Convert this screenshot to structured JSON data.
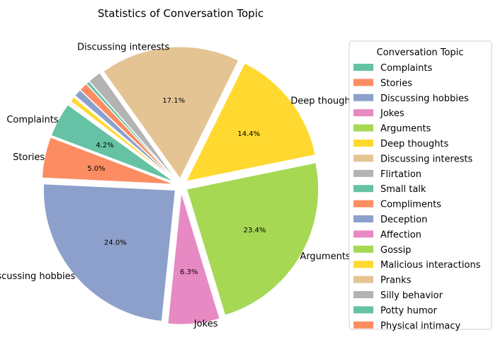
{
  "chart_data": {
    "type": "pie",
    "title": "Statistics of Conversation Topic",
    "legend_title": "Conversation Topic",
    "legend_position": "right",
    "start_angle_deg": 144,
    "direction": "counterclockwise",
    "slices": [
      {
        "label": "Complaints",
        "value": 4.2,
        "pct_label": "4.2%",
        "color": "#66c2a5",
        "show_label": true
      },
      {
        "label": "Stories",
        "value": 5.0,
        "pct_label": "5.0%",
        "color": "#fc8d62",
        "show_label": true
      },
      {
        "label": "Discussing hobbies",
        "value": 24.0,
        "pct_label": "24.0%",
        "color": "#8da0cb",
        "show_label": true
      },
      {
        "label": "Jokes",
        "value": 6.3,
        "pct_label": "6.3%",
        "color": "#e78ac3",
        "show_label": true
      },
      {
        "label": "Arguments",
        "value": 23.4,
        "pct_label": "23.4%",
        "color": "#a6d854",
        "show_label": true
      },
      {
        "label": "Deep thoughts",
        "value": 14.4,
        "pct_label": "14.4%",
        "color": "#ffd92f",
        "show_label": true
      },
      {
        "label": "Discussing interests",
        "value": 17.1,
        "pct_label": "17.1%",
        "color": "#e5c494",
        "show_label": true
      },
      {
        "label": "Flirtation",
        "value": 1.6,
        "pct_label": "",
        "color": "#b3b3b3",
        "show_label": false
      },
      {
        "label": "Small talk",
        "value": 0.4,
        "pct_label": "",
        "color": "#66c2a5",
        "show_label": false
      },
      {
        "label": "Compliments",
        "value": 1.0,
        "pct_label": "",
        "color": "#fc8d62",
        "show_label": false
      },
      {
        "label": "Deception",
        "value": 0.9,
        "pct_label": "",
        "color": "#8da0cb",
        "show_label": false
      },
      {
        "label": "Affection",
        "value": 0.1,
        "pct_label": "",
        "color": "#e78ac3",
        "show_label": false
      },
      {
        "label": "Gossip",
        "value": 0.1,
        "pct_label": "",
        "color": "#a6d854",
        "show_label": false
      },
      {
        "label": "Malicious interactions",
        "value": 0.6,
        "pct_label": "",
        "color": "#ffd92f",
        "show_label": false
      },
      {
        "label": "Pranks",
        "value": 0.1,
        "pct_label": "",
        "color": "#e5c494",
        "show_label": false
      },
      {
        "label": "Silly behavior",
        "value": 0.1,
        "pct_label": "",
        "color": "#b3b3b3",
        "show_label": false
      },
      {
        "label": "Potty humor",
        "value": 0.1,
        "pct_label": "",
        "color": "#66c2a5",
        "show_label": false
      },
      {
        "label": "Physical intimacy",
        "value": 0.1,
        "pct_label": "",
        "color": "#fc8d62",
        "show_label": false
      }
    ]
  }
}
